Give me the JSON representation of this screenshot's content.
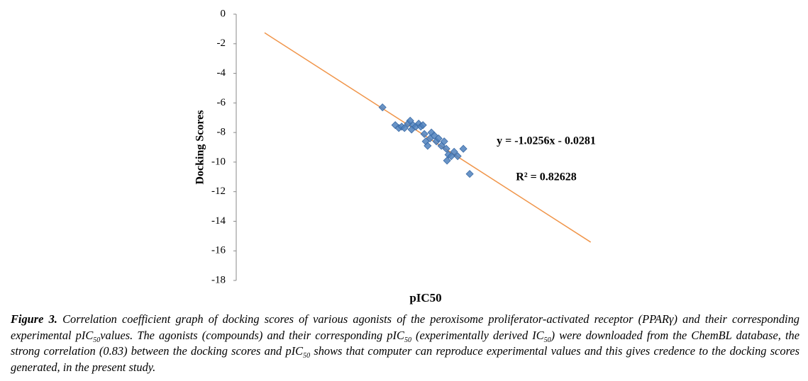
{
  "chart_data": {
    "type": "scatter",
    "y_label": "Docking Scores",
    "x_label": "pIC50",
    "xlim": [
      0,
      16
    ],
    "ylim": [
      -18,
      0
    ],
    "yticks": [
      0,
      -2,
      -4,
      -6,
      -8,
      -10,
      -12,
      -14,
      -16,
      -18
    ],
    "grid": false,
    "color": "#4f81bd",
    "x": [
      6.19,
      6.73,
      6.88,
      7.0,
      7.12,
      7.27,
      7.36,
      7.48,
      7.6,
      7.72,
      7.81,
      7.9,
      7.42,
      7.96,
      8.02,
      8.1,
      8.2,
      8.26,
      8.38,
      8.47,
      8.56,
      8.68,
      8.8,
      8.89,
      8.98,
      8.92,
      9.1,
      9.22,
      9.37,
      9.61,
      9.88
    ],
    "values": [
      -6.3,
      -7.5,
      -7.7,
      -7.6,
      -7.7,
      -7.4,
      -7.2,
      -7.5,
      -7.6,
      -7.4,
      -7.6,
      -7.5,
      -7.8,
      -8.1,
      -8.6,
      -8.9,
      -8.4,
      -8.0,
      -8.2,
      -8.6,
      -8.4,
      -8.9,
      -8.6,
      -9.1,
      -9.5,
      -9.9,
      -9.6,
      -9.3,
      -9.6,
      -9.1,
      -10.8
    ],
    "trendline": {
      "color": "#f0954a",
      "slope": -1.0256,
      "intercept": -0.0281,
      "x": [
        1.2,
        15.0
      ]
    },
    "equation": "y = -1.0256x - 0.0281",
    "r_squared": "R² = 0.82628"
  },
  "caption": {
    "label": "Figure 3.",
    "runs": [
      {
        "t": " Correlation coefficient graph of docking scores of various agonists of the peroxisome proliferator-activated receptor (PPARγ)  and their corresponding experimental pIC"
      },
      {
        "sub": "50"
      },
      {
        "t": "values. The agonists (compounds) and their corresponding pIC"
      },
      {
        "sub": "50"
      },
      {
        "t": " (experimentally derived IC"
      },
      {
        "sub": "50"
      },
      {
        "t": ") were downloaded from the ChemBL database, the strong correlation (0.83) between the docking scores and pIC"
      },
      {
        "sub": "50"
      },
      {
        "t": " shows that computer can reproduce experimental values and this gives credence to the docking scores generated, in the present study."
      }
    ]
  }
}
